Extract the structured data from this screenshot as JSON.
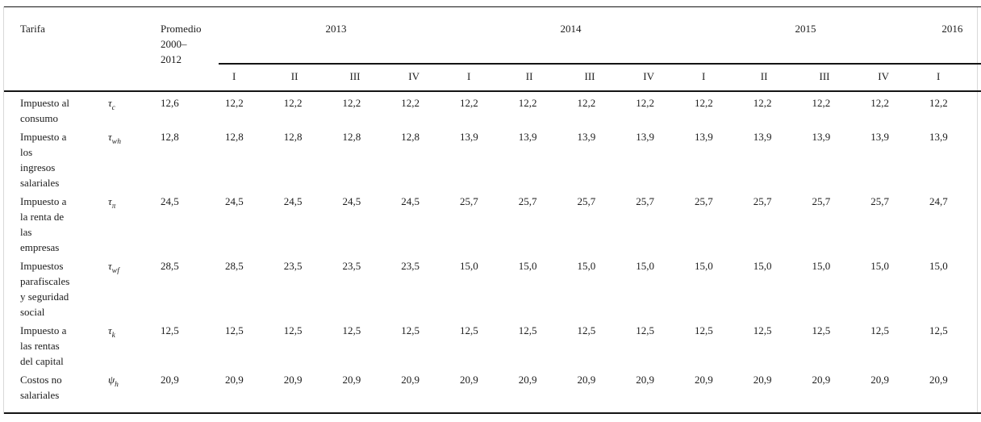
{
  "table": {
    "title_hint": "Tarifa",
    "corner_label": "Tarifa",
    "promedio_header_lines": [
      "Promedio",
      "2000–",
      "2012"
    ],
    "year_groups": [
      {
        "label": "2013",
        "quarters": [
          "I",
          "II",
          "III",
          "IV"
        ]
      },
      {
        "label": "2014",
        "quarters": [
          "I",
          "II",
          "III",
          "IV"
        ]
      },
      {
        "label": "2015",
        "quarters": [
          "I",
          "II",
          "III",
          "IV"
        ]
      },
      {
        "label": "2016",
        "quarters": [
          "I"
        ]
      }
    ],
    "rows": [
      {
        "label_lines": [
          "Impuesto al",
          "consumo"
        ],
        "symbol_base": "τ",
        "symbol_sub": "c",
        "promedio": "12,6",
        "values": [
          "12,2",
          "12,2",
          "12,2",
          "12,2",
          "12,2",
          "12,2",
          "12,2",
          "12,2",
          "12,2",
          "12,2",
          "12,2",
          "12,2",
          "12,2"
        ]
      },
      {
        "label_lines": [
          "Impuesto a",
          "los",
          "ingresos",
          "salariales"
        ],
        "symbol_base": "τ",
        "symbol_sub": "wh",
        "promedio": "12,8",
        "values": [
          "12,8",
          "12,8",
          "12,8",
          "12,8",
          "13,9",
          "13,9",
          "13,9",
          "13,9",
          "13,9",
          "13,9",
          "13,9",
          "13,9",
          "13,9"
        ]
      },
      {
        "label_lines": [
          "Impuesto a",
          "la renta de",
          "las",
          "empresas"
        ],
        "symbol_base": "τ",
        "symbol_sub": "π",
        "promedio": "24,5",
        "values": [
          "24,5",
          "24,5",
          "24,5",
          "24,5",
          "25,7",
          "25,7",
          "25,7",
          "25,7",
          "25,7",
          "25,7",
          "25,7",
          "25,7",
          "24,7"
        ]
      },
      {
        "label_lines": [
          "Impuestos",
          "parafiscales",
          "y seguridad",
          "social"
        ],
        "symbol_base": "τ",
        "symbol_sub": "wf",
        "promedio": "28,5",
        "values": [
          "28,5",
          "23,5",
          "23,5",
          "23,5",
          "15,0",
          "15,0",
          "15,0",
          "15,0",
          "15,0",
          "15,0",
          "15,0",
          "15,0",
          "15,0"
        ]
      },
      {
        "label_lines": [
          "Impuesto a",
          "las rentas",
          "del capital"
        ],
        "symbol_base": "τ",
        "symbol_sub": "k",
        "promedio": "12,5",
        "values": [
          "12,5",
          "12,5",
          "12,5",
          "12,5",
          "12,5",
          "12,5",
          "12,5",
          "12,5",
          "12,5",
          "12,5",
          "12,5",
          "12,5",
          "12,5"
        ]
      },
      {
        "label_lines": [
          "Costos no",
          "salariales"
        ],
        "symbol_base": "ψ",
        "symbol_sub": "h",
        "promedio": "20,9",
        "values": [
          "20,9",
          "20,9",
          "20,9",
          "20,9",
          "20,9",
          "20,9",
          "20,9",
          "20,9",
          "20,9",
          "20,9",
          "20,9",
          "20,9",
          "20,9"
        ]
      }
    ]
  }
}
